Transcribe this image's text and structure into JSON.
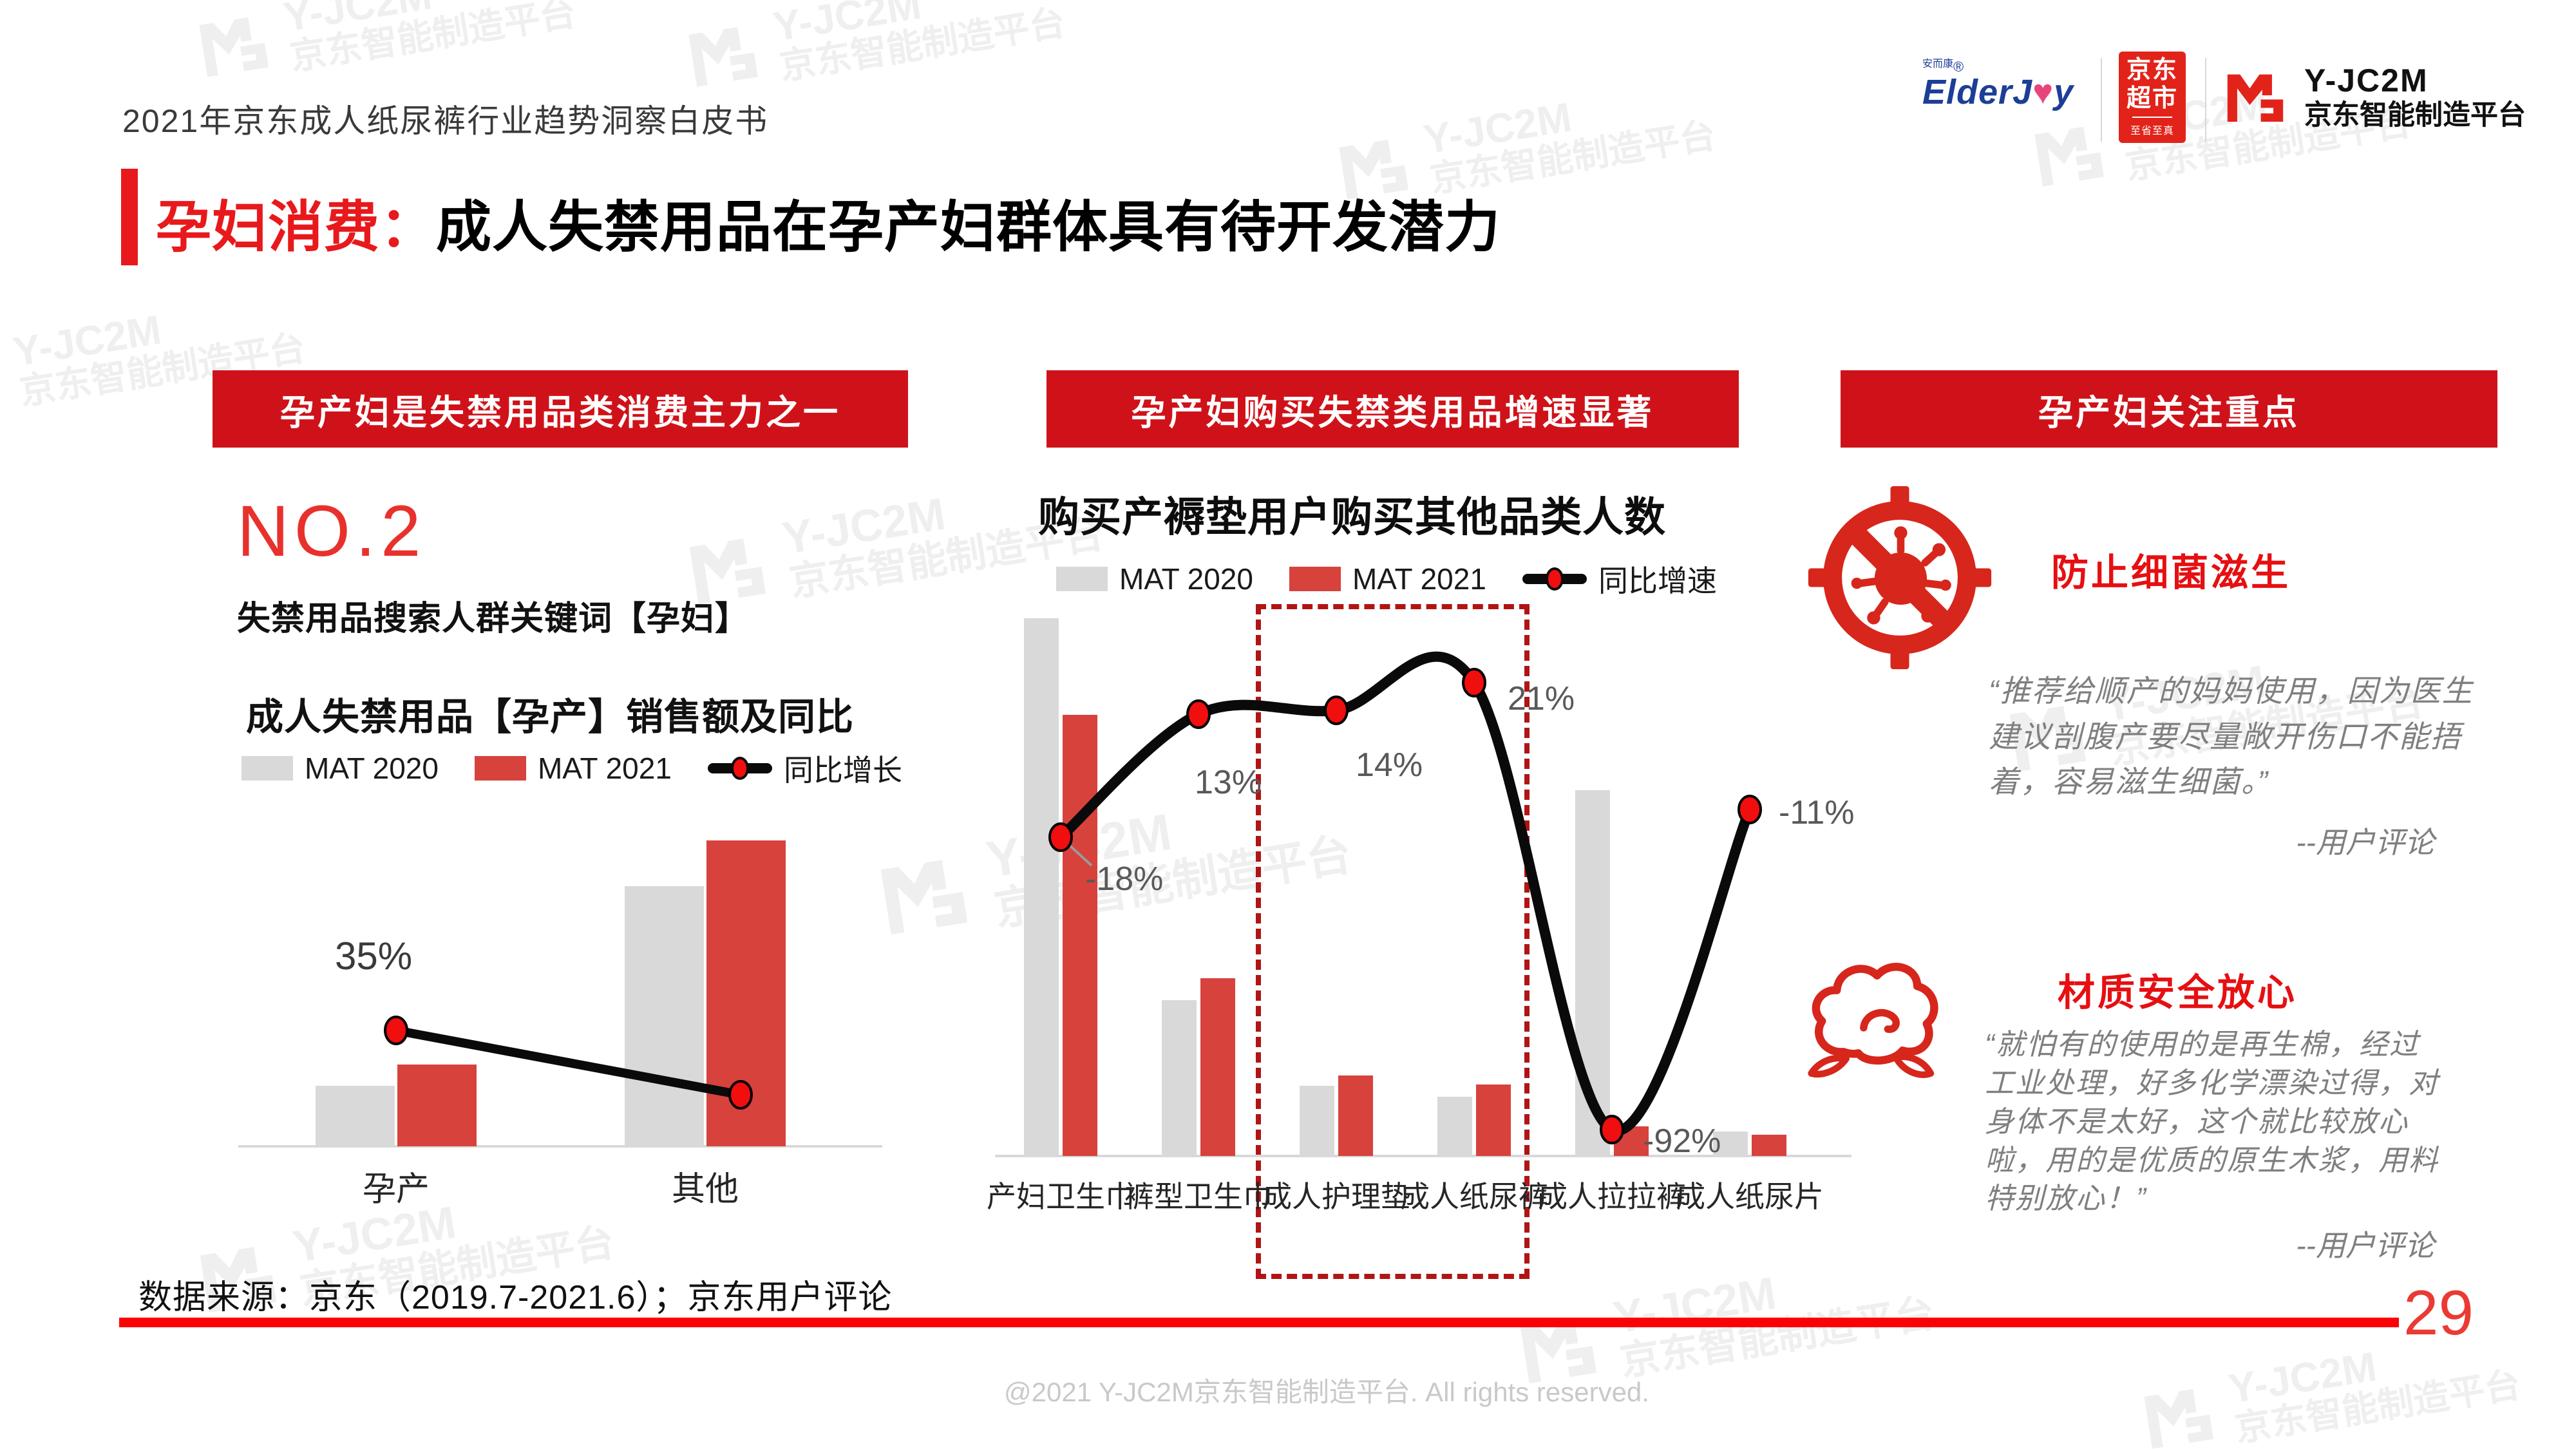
{
  "header": {
    "doc_title": "2021年京东成人纸尿裤行业趋势洞察白皮书",
    "logos": {
      "elderjoy": {
        "cn": "安而康",
        "reg": "®",
        "en_prefix": "ElderJ",
        "heart": "♥",
        "en_suffix": "y"
      },
      "jd_supermarket": {
        "line1": "京东",
        "line2": "超市",
        "tagline": "至省至真"
      },
      "yjc2m": {
        "name": "Y-JC2M",
        "subtitle": "京东智能制造平台"
      }
    }
  },
  "page_title": {
    "accent": "孕妇消费：",
    "main": "成人失禁用品在孕产妇群体具有待开发潜力"
  },
  "sections": {
    "left": {
      "banner": "孕产妇是失禁用品类消费主力之一",
      "rank": "NO.2",
      "rank_note": "失禁用品搜索人群关键词【孕妇】",
      "chart_title": "成人失禁用品【孕产】销售额及同比",
      "legend": [
        "MAT 2020",
        "MAT 2021",
        "同比增长"
      ]
    },
    "middle": {
      "banner": "孕产妇购买失禁类用品增速显著",
      "chart_title": "购买产褥垫用户购买其他品类人数",
      "legend": [
        "MAT 2020",
        "MAT 2021",
        "同比增速"
      ]
    },
    "right": {
      "banner": "孕产妇关注重点",
      "focus1": {
        "icon": "no-bacteria-icon",
        "title": "防止细菌滋生",
        "quote": "“推荐给顺产的妈妈使用，因为医生建议剖腹产要尽量敞开伤口不能捂着，容易滋生细菌。”",
        "attribution": "--用户评论"
      },
      "focus2": {
        "icon": "cotton-icon",
        "title": "材质安全放心",
        "quote": "“就怕有的使用的是再生棉，经过工业处理，好多化学漂染过得，对身体不是太好，这个就比较放心啦，用的是优质的原生木浆，用料特别放心！”",
        "attribution": "--用户评论"
      }
    }
  },
  "chart_data": [
    {
      "type": "bar+line",
      "title": "成人失禁用品【孕产】销售额及同比",
      "categories": [
        "孕产",
        "其他"
      ],
      "series": [
        {
          "name": "MAT 2020",
          "values": [
            20,
            86
          ]
        },
        {
          "name": "MAT 2021",
          "values": [
            27,
            101
          ]
        }
      ],
      "line": {
        "name": "同比增长",
        "values": [
          35,
          18
        ],
        "labels": [
          "35%",
          ""
        ]
      },
      "axis_note": "no numeric axis shown; bar values estimated from bar heights (relative units)",
      "legend_position": "top"
    },
    {
      "type": "bar+line",
      "title": "购买产褥垫用户购买其他品类人数",
      "categories": [
        "产妇卫生巾",
        "裤型卫生巾",
        "成人护理垫",
        "成人纸尿裤",
        "成人拉拉裤",
        "成人纸尿片"
      ],
      "series": [
        {
          "name": "MAT 2020",
          "values": [
            100,
            29,
            13,
            11,
            68,
            4.5
          ]
        },
        {
          "name": "MAT 2021",
          "values": [
            82,
            33,
            15,
            13.3,
            5.5,
            4
          ]
        }
      ],
      "line": {
        "name": "同比增速",
        "values": [
          -18,
          13,
          14,
          21,
          -92,
          -11
        ],
        "labels": [
          "-18%",
          "13%",
          "14%",
          "21%",
          "-92%",
          "-11%"
        ]
      },
      "highlight": {
        "categories": [
          "成人护理垫",
          "成人纸尿裤"
        ],
        "style": "dashed-red-box"
      },
      "axis_note": "no numeric axis shown; bar values estimated from bar heights (relative units)",
      "legend_position": "top"
    }
  ],
  "footer": {
    "source": "数据来源：京东（2019.7-2021.6）；京东用户评论",
    "page_number": "29",
    "copyright": "@2021 Y-JC2M京东智能制造平台. All rights reserved."
  },
  "watermark": {
    "line1": "Y-JC2M",
    "line2": "京东智能制造平台"
  },
  "colors": {
    "banner_red": "#CF1219",
    "bar_gray": "#D9D9D9",
    "bar_red": "#D7423C",
    "accent_red": "#E8191C",
    "rank_red": "#E8312C",
    "line_black": "#0A0A0A",
    "dot_red": "#F10E0E",
    "dashed_box_red": "#B01515",
    "divider_red": "#FB0207",
    "jd_red": "#E2231A",
    "elderjoy_blue": "#1C3E96",
    "icon_red": "#D7261B"
  }
}
